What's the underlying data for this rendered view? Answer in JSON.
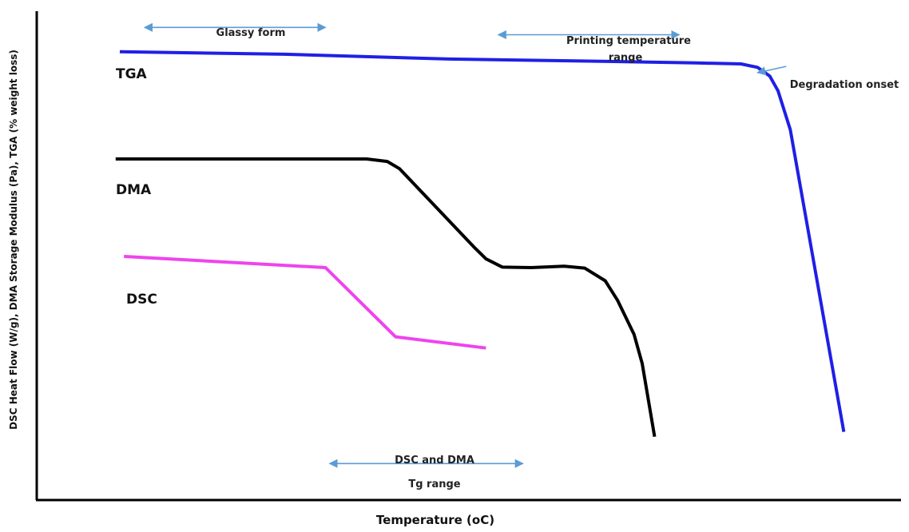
{
  "chart_data": {
    "type": "line",
    "title": "",
    "xlabel": "Temperature",
    "xlabel_unit": "(oC)",
    "ylabel": "DSC Heat Flow (W/g),  DMA Storage Modulus (Pa), TGA (% weight loss)",
    "ticks_shown": false,
    "grid": false,
    "legend": "none (series labelled inline)",
    "series": [
      {
        "name": "TGA",
        "color": "#1f1fe6",
        "points": [
          [
            0.0,
            0.92
          ],
          [
            0.2,
            0.915
          ],
          [
            0.4,
            0.905
          ],
          [
            0.6,
            0.9
          ],
          [
            0.7,
            0.897
          ],
          [
            0.755,
            0.895
          ],
          [
            0.775,
            0.888
          ],
          [
            0.79,
            0.87
          ],
          [
            0.8,
            0.84
          ],
          [
            0.815,
            0.76
          ],
          [
            0.88,
            0.14
          ]
        ]
      },
      {
        "name": "DMA",
        "color": "#000000",
        "points": [
          [
            -0.005,
            0.7
          ],
          [
            0.21,
            0.7
          ],
          [
            0.3,
            0.7
          ],
          [
            0.325,
            0.695
          ],
          [
            0.34,
            0.68
          ],
          [
            0.43,
            0.52
          ],
          [
            0.445,
            0.495
          ],
          [
            0.465,
            0.478
          ],
          [
            0.5,
            0.477
          ],
          [
            0.54,
            0.48
          ],
          [
            0.565,
            0.476
          ],
          [
            0.59,
            0.45
          ],
          [
            0.605,
            0.41
          ],
          [
            0.625,
            0.34
          ],
          [
            0.635,
            0.28
          ],
          [
            0.65,
            0.13
          ]
        ]
      },
      {
        "name": "DSC",
        "color": "#ee44ee",
        "points": [
          [
            0.005,
            0.5
          ],
          [
            0.25,
            0.477
          ],
          [
            0.335,
            0.335
          ],
          [
            0.445,
            0.312
          ]
        ]
      }
    ],
    "annotations": [
      {
        "text": "Glassy form",
        "lines": [
          "Glassy form"
        ],
        "x_from": 0.03,
        "x_to": 0.25,
        "y": 0.97
      },
      {
        "text": "Printing temperature range",
        "lines": [
          "Printing temperature",
          "range"
        ],
        "x_from": 0.46,
        "x_to": 0.68,
        "y": 0.955
      },
      {
        "text": "Degradation onset",
        "lines": [
          "Degradation onset"
        ],
        "x": 0.785,
        "y": 0.88,
        "arrow_from": [
          0.81,
          0.89
        ],
        "arrow_to": [
          0.775,
          0.877
        ]
      },
      {
        "text": "DSC and DMA Tg range",
        "lines": [
          "DSC and DMA",
          "Tg range"
        ],
        "x_from": 0.255,
        "x_to": 0.49,
        "y": 0.075
      }
    ]
  }
}
